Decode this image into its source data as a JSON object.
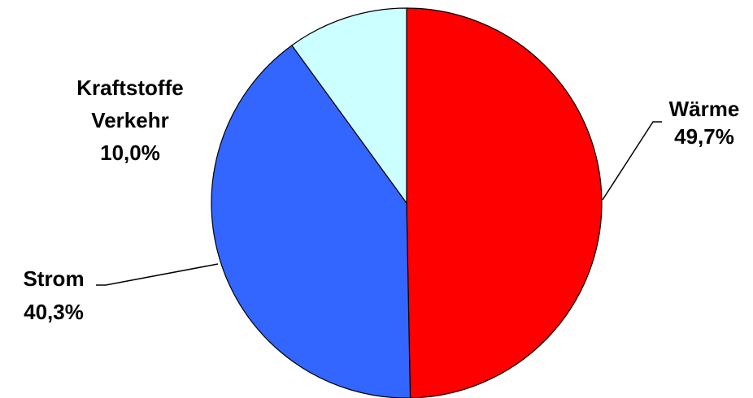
{
  "chart_data": {
    "type": "pie",
    "title": "",
    "slices": [
      {
        "name": "Wärme",
        "value": 49.7,
        "value_label": "49,7%",
        "color": "#ff0000",
        "label_lines": [
          "Wärme",
          "49,7%"
        ]
      },
      {
        "name": "Strom",
        "value": 40.3,
        "value_label": "40,3%",
        "color": "#3366ff",
        "label_lines": [
          "Strom",
          "40,3%"
        ]
      },
      {
        "name": "Kraftstoffe Verkehr",
        "value": 10.0,
        "value_label": "10,0%",
        "color": "#ccffff",
        "label_lines": [
          "Kraftstoffe",
          "Verkehr",
          "10,0%"
        ]
      }
    ],
    "start_angle": "12 o'clock",
    "direction": "clockwise",
    "legend": "none",
    "leader_lines": true
  }
}
